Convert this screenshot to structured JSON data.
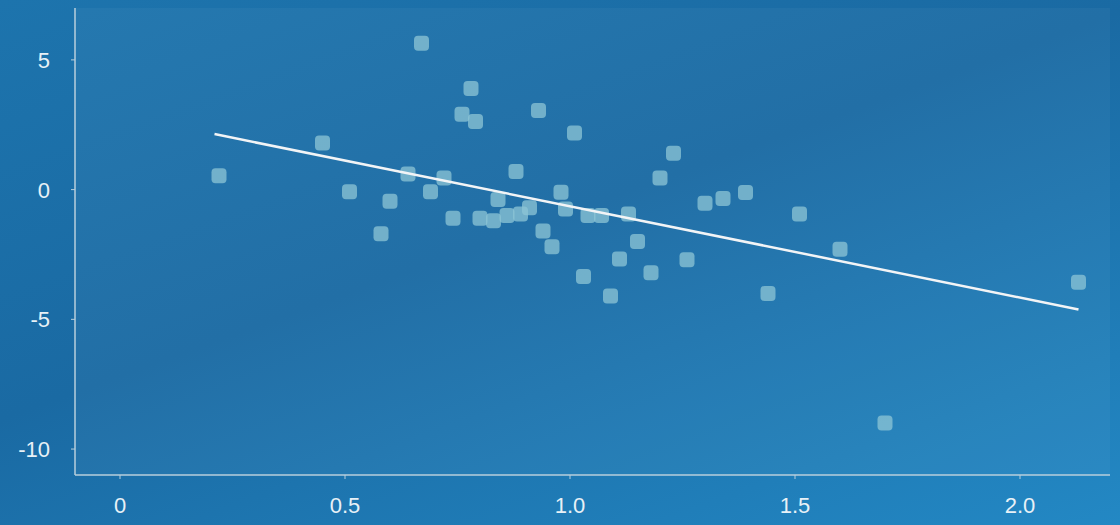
{
  "chart_data": {
    "type": "scatter",
    "x": [
      0.22,
      0.45,
      0.51,
      0.58,
      0.6,
      0.64,
      0.67,
      0.69,
      0.72,
      0.74,
      0.76,
      0.78,
      0.79,
      0.8,
      0.83,
      0.84,
      0.86,
      0.88,
      0.89,
      0.91,
      0.93,
      0.94,
      0.96,
      0.98,
      0.99,
      1.01,
      1.03,
      1.04,
      1.07,
      1.09,
      1.11,
      1.13,
      1.15,
      1.18,
      1.2,
      1.23,
      1.26,
      1.3,
      1.34,
      1.39,
      1.44,
      1.51,
      1.6,
      1.7,
      2.13
    ],
    "values": [
      0.53,
      1.8,
      -0.08,
      -1.7,
      -0.45,
      0.6,
      5.64,
      -0.08,
      0.45,
      -1.1,
      2.9,
      3.9,
      2.63,
      -1.1,
      -1.2,
      -0.38,
      -1.0,
      0.7,
      -0.94,
      -0.7,
      3.05,
      -1.6,
      -2.2,
      -0.1,
      -0.75,
      2.18,
      -3.35,
      -1.0,
      -1.0,
      -4.1,
      -2.67,
      -0.94,
      -2.0,
      -3.2,
      0.45,
      1.4,
      -2.7,
      -0.53,
      -0.34,
      -0.11,
      -4.0,
      -0.94,
      -2.3,
      -9.0,
      -3.57
    ],
    "color": "#8ec5d6",
    "marker": "square",
    "trend_line": {
      "x": [
        0.21,
        2.13
      ],
      "values": [
        2.14,
        -4.62
      ],
      "color": "#f2f4f6"
    },
    "xlim": [
      -0.1,
      2.2
    ],
    "xticks": [
      0,
      0.5,
      {
        "value": 1,
        "label": "1.0"
      },
      1.5,
      {
        "value": 2,
        "label": "2.0"
      }
    ],
    "ylim": [
      -11,
      7
    ],
    "yticks": [
      -10,
      -5,
      0,
      5
    ],
    "grid": false
  }
}
